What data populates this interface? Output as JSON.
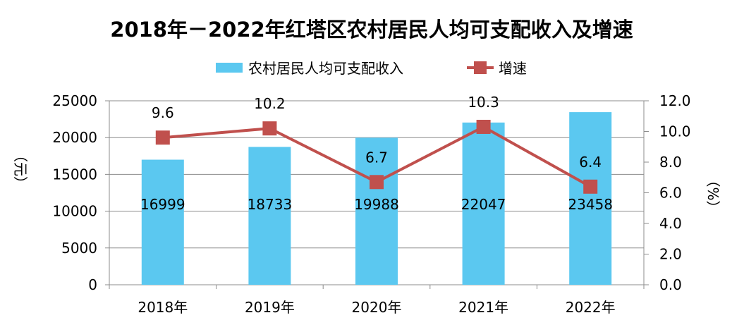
{
  "chart_data": {
    "type": "bar+line",
    "title": "2018年－2022年红塔区农村居民人均可支配收入及增速",
    "categories": [
      "2018年",
      "2019年",
      "2020年",
      "2021年",
      "2022年"
    ],
    "series": [
      {
        "name": "农村居民人均可支配收入",
        "type": "bar",
        "axis": "left",
        "color": "#5BC8F0",
        "values": [
          16999,
          18733,
          19988,
          22047,
          23458
        ]
      },
      {
        "name": "增速",
        "type": "line",
        "axis": "right",
        "color": "#C0504D",
        "marker": "square",
        "values": [
          9.6,
          10.2,
          6.7,
          10.3,
          6.4
        ]
      }
    ],
    "ylabel_left": "（元）",
    "ylabel_right": "（%）",
    "ylim_left": [
      0,
      25000
    ],
    "yticks_left": [
      "0",
      "5000",
      "10000",
      "15000",
      "20000",
      "25000"
    ],
    "ylim_right": [
      0,
      12
    ],
    "yticks_right": [
      "0.0",
      "2.0",
      "4.0",
      "6.0",
      "8.0",
      "10.0",
      "12.0"
    ],
    "grid": true,
    "legend_position": "top"
  }
}
